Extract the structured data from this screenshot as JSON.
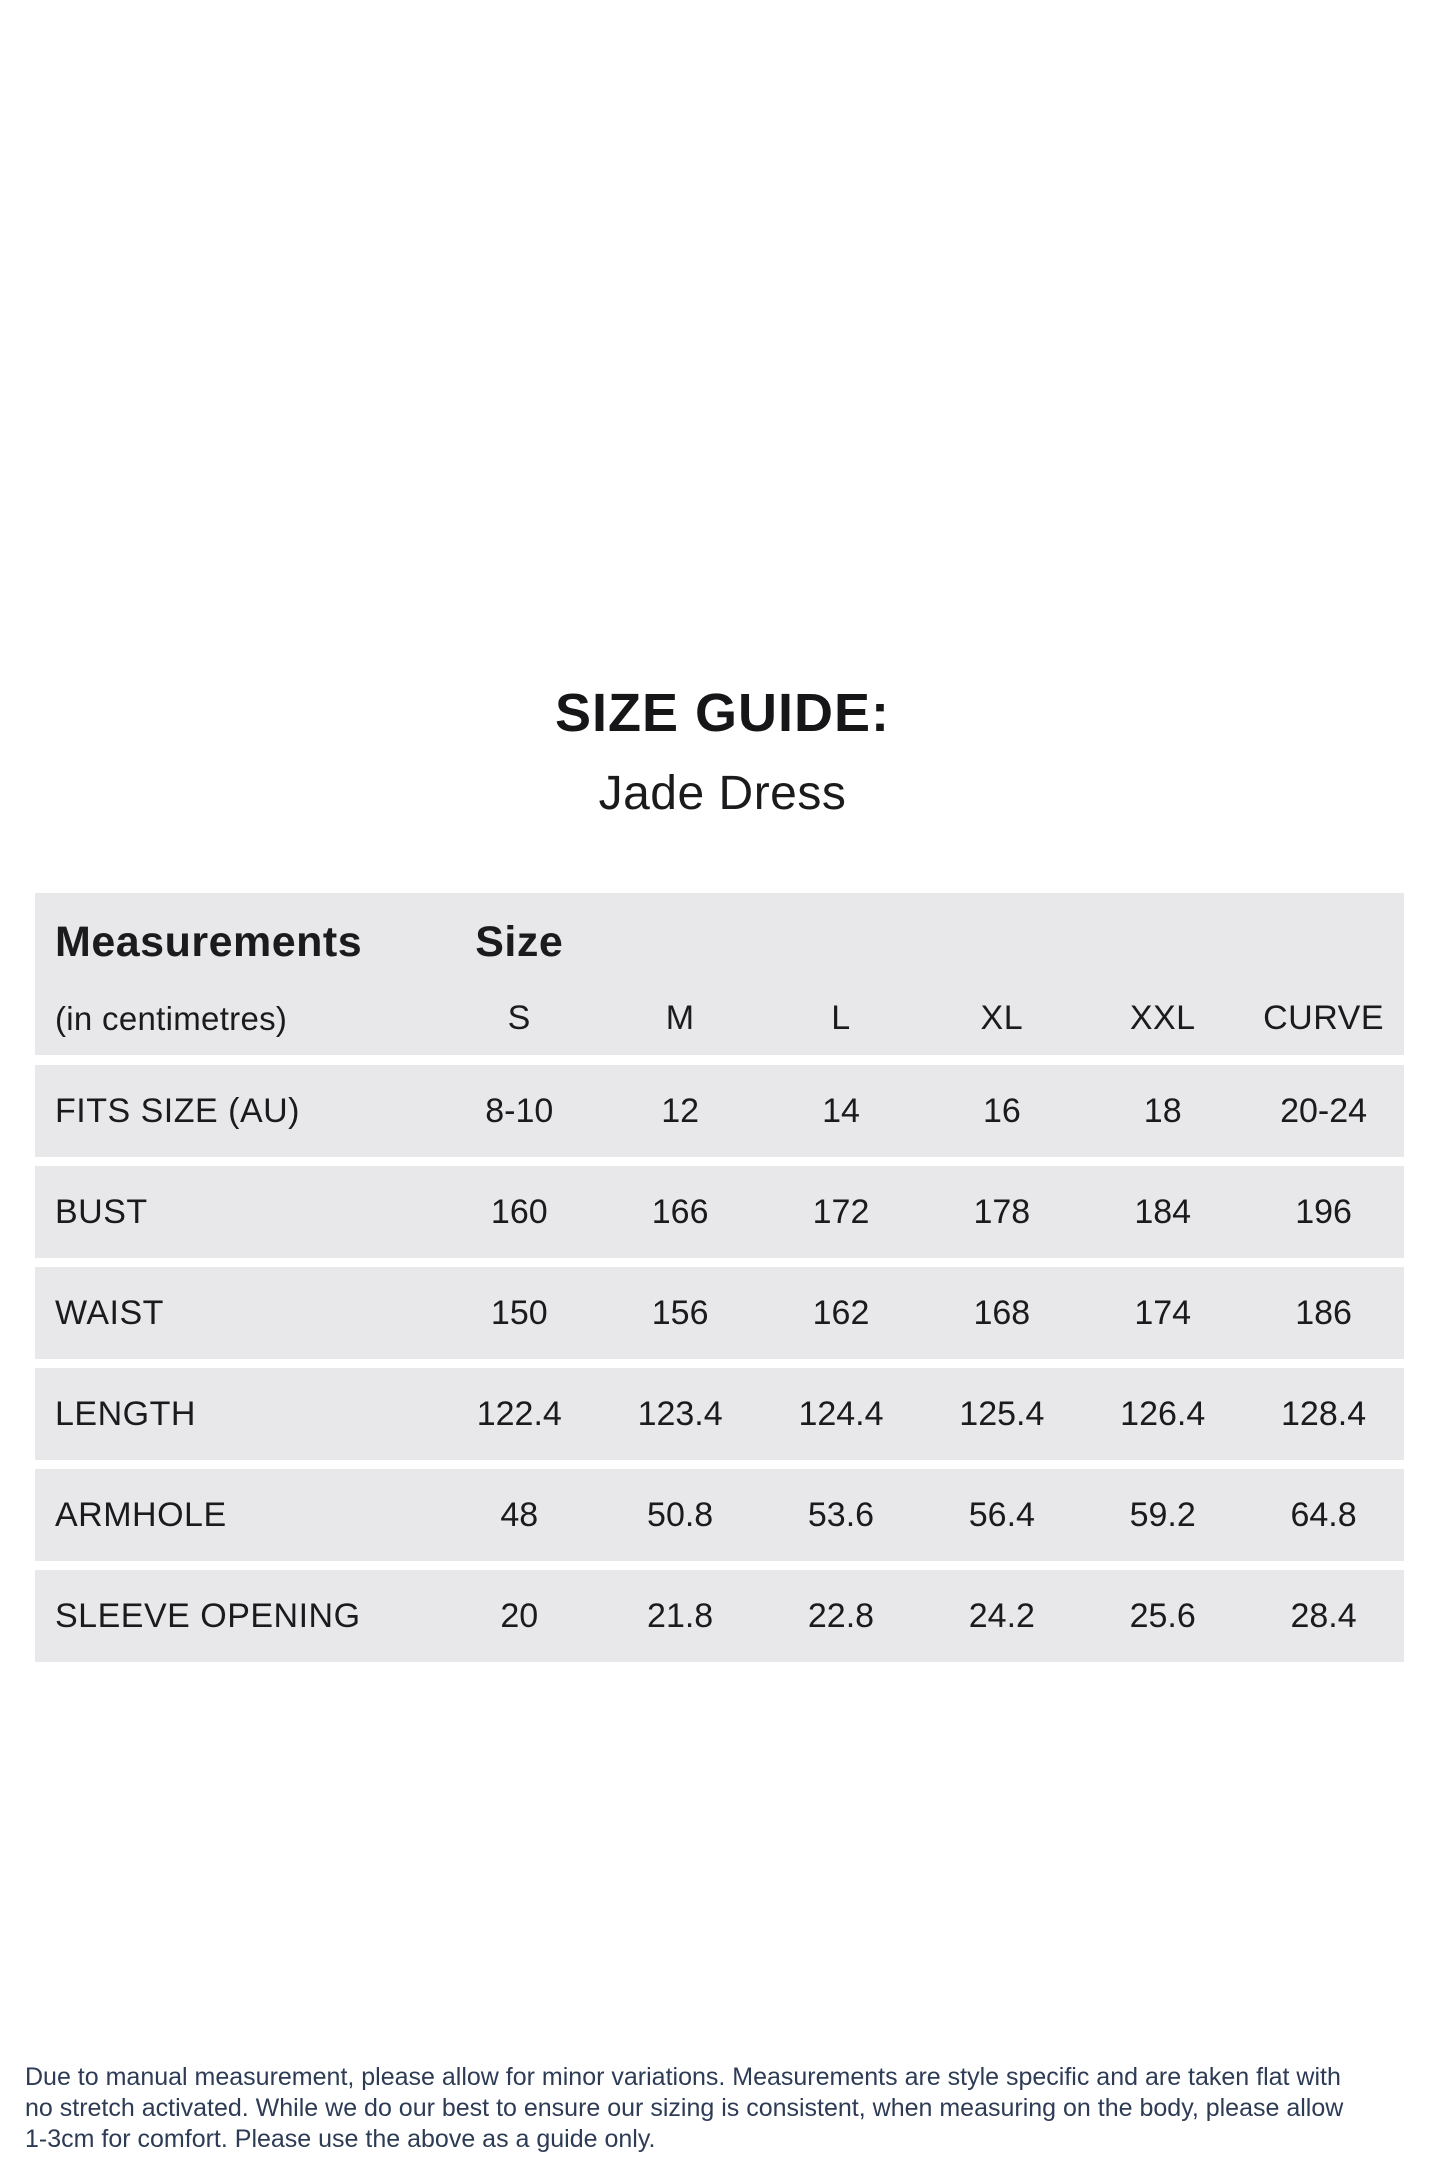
{
  "page": {
    "title": "SIZE GUIDE:",
    "subtitle": "Jade Dress"
  },
  "table": {
    "header": {
      "col1_title": "Measurements",
      "col1_subtitle": "(in centimetres)",
      "col2_title": "Size",
      "sizes": [
        "S",
        "M",
        "L",
        "XL",
        "XXL",
        "CURVE"
      ]
    },
    "rows": [
      {
        "label": "FITS SIZE (AU)",
        "values": [
          "8-10",
          "12",
          "14",
          "16",
          "18",
          "20-24"
        ]
      },
      {
        "label": "BUST",
        "values": [
          "160",
          "166",
          "172",
          "178",
          "184",
          "196"
        ]
      },
      {
        "label": "WAIST",
        "values": [
          "150",
          "156",
          "162",
          "168",
          "174",
          "186"
        ]
      },
      {
        "label": "LENGTH",
        "values": [
          "122.4",
          "123.4",
          "124.4",
          "125.4",
          "126.4",
          "128.4"
        ]
      },
      {
        "label": "ARMHOLE",
        "values": [
          "48",
          "50.8",
          "53.6",
          "56.4",
          "59.2",
          "64.8"
        ]
      },
      {
        "label": "SLEEVE OPENING",
        "values": [
          "20",
          "21.8",
          "22.8",
          "24.2",
          "25.6",
          "28.4"
        ]
      }
    ]
  },
  "footer": {
    "lines": [
      "Due to manual measurement, please allow for minor variations. Measurements are style specific and are taken flat with",
      "no stretch activated. While we do our best to ensure our sizing is consistent, when measuring on the body, please allow",
      "1-3cm for comfort. Please use the above as a guide only."
    ]
  },
  "colors": {
    "row_background": "#e8e8ea",
    "table_text": "#1b1b1d",
    "footer_text": "#2d3b55"
  }
}
